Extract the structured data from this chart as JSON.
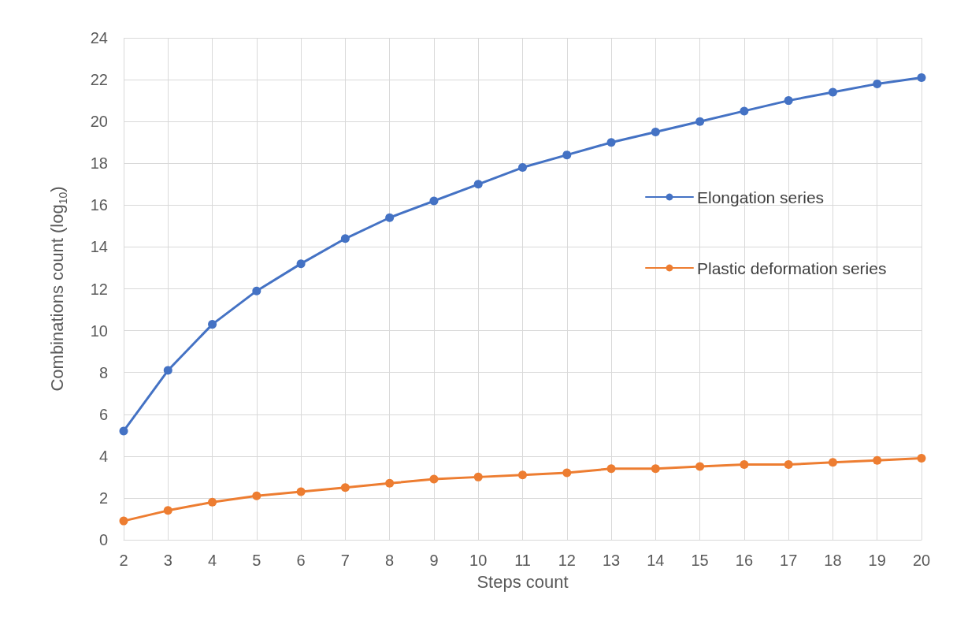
{
  "chart_data": {
    "type": "line",
    "xlabel": "Steps count",
    "ylabel": "Combinations count (log$_{10}$)",
    "categories": [
      "2",
      "3",
      "4",
      "5",
      "6",
      "7",
      "8",
      "9",
      "10",
      "11",
      "12",
      "13",
      "14",
      "15",
      "16",
      "17",
      "18",
      "19",
      "20"
    ],
    "series": [
      {
        "name": "Elongation series",
        "color": "#4472c4",
        "values": [
          5.2,
          8.1,
          10.3,
          11.9,
          13.2,
          14.4,
          15.4,
          16.2,
          17.0,
          17.8,
          18.4,
          19.0,
          19.5,
          20.0,
          20.5,
          21.0,
          21.4,
          21.8,
          22.1
        ]
      },
      {
        "name": "Plastic deformation series",
        "color": "#ed7d31",
        "values": [
          0.9,
          1.4,
          1.8,
          2.1,
          2.3,
          2.5,
          2.7,
          2.9,
          3.0,
          3.1,
          3.2,
          3.4,
          3.4,
          3.5,
          3.6,
          3.6,
          3.7,
          3.8,
          3.9
        ]
      }
    ],
    "ylim": [
      0,
      24
    ],
    "yticks": [
      0,
      2,
      4,
      6,
      8,
      10,
      12,
      14,
      16,
      18,
      20,
      22,
      24
    ],
    "grid": true,
    "legend": "right",
    "marker": "circle",
    "line_style": "solid"
  }
}
